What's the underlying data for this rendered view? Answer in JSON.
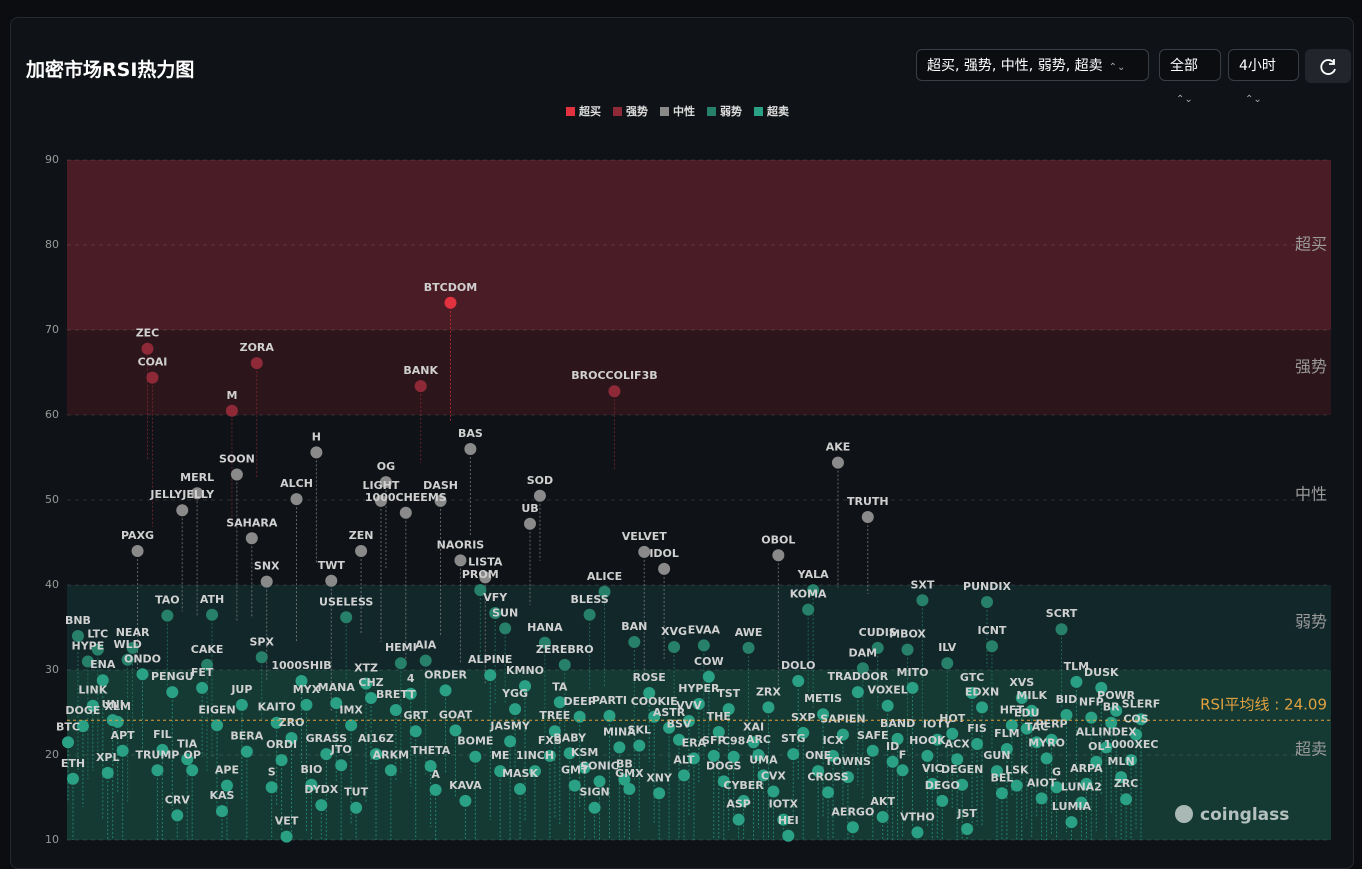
{
  "controls": {
    "zone_filter": "超买, 强势, 中性, 弱势, 超卖",
    "scope": "全部",
    "timeframe": "4小时"
  },
  "chart_data": {
    "type": "scatter",
    "title": "加密市场RSI热力图",
    "watermark": "coinglass",
    "ylim": [
      10,
      90
    ],
    "yticks": [
      10,
      20,
      30,
      40,
      50,
      60,
      70,
      80,
      90
    ],
    "grid": true,
    "legend": "top",
    "zones": [
      {
        "name": "超买",
        "color": "#e0323f",
        "band": "#4a1c25",
        "range": [
          70,
          90
        ]
      },
      {
        "name": "强势",
        "color": "#8e2a38",
        "band": "#2c161b",
        "range": [
          60,
          70
        ]
      },
      {
        "name": "中性",
        "color": "#8a8a8a",
        "band": "#0f1216",
        "range": [
          40,
          60
        ]
      },
      {
        "name": "弱势",
        "color": "#27806a",
        "band": "#11272a",
        "range": [
          30,
          40
        ]
      },
      {
        "name": "超卖",
        "color": "#2aa085",
        "band": "#143a33",
        "range": [
          10,
          30
        ]
      }
    ],
    "average": {
      "value": 24.09,
      "label": "RSI平均线 : 24.09",
      "color": "#e0a040"
    },
    "categories": [
      "BTC",
      "ETH",
      "BNB",
      "DOGE",
      "HYPE",
      "LINK",
      "LTC",
      "ENA",
      "XPL",
      "UNI",
      "XLM",
      "APT",
      "WLD",
      "NEAR",
      "PAXG",
      "ONDO",
      "ZEC",
      "COAI",
      "TRUMP",
      "FIL",
      "TAO",
      "PENGU",
      "CRV",
      "JELLYJELLY",
      "TIA",
      "OP",
      "MERL",
      "FET",
      "CAKE",
      "ATH",
      "EIGEN",
      "KAS",
      "APE",
      "M",
      "SOON",
      "JUP",
      "BERA",
      "SAHARA",
      "ZORA",
      "SPX",
      "SNX",
      "S",
      "KAITO",
      "ORDI",
      "VET",
      "ZRO",
      "ALCH",
      "1000SHIB",
      "MYX",
      "BIO",
      "H",
      "DYDX",
      "GRASS",
      "TWT",
      "MANA",
      "JTO",
      "USELESS",
      "IMX",
      "TUT",
      "ZEN",
      "XTZ",
      "CHZ",
      "AI16Z",
      "LIGHT",
      "OG",
      "ARKM",
      "BRETT",
      "HEMI",
      "1000CHEEMS",
      "4",
      "GRT",
      "BANK",
      "AIA",
      "THETA",
      "A",
      "DASH",
      "ORDER",
      "BTCDOM",
      "GOAT",
      "NAORIS",
      "KAVA",
      "BAS",
      "BOME",
      "PROM",
      "LISTA",
      "ALPINE",
      "VFY",
      "ME",
      "SUN",
      "JASMY",
      "YGG",
      "MASK",
      "KMNO",
      "UB",
      "1INCH",
      "SOD",
      "HANA",
      "FXS",
      "TREE",
      "TA",
      "ZEREBRO",
      "BABY",
      "GMT",
      "DEEP",
      "KSM",
      "BLESS",
      "SIGN",
      "SONIC",
      "ALICE",
      "PARTI",
      "BROCCOLIF3B",
      "MINA",
      "BB",
      "GMX",
      "BAN",
      "SKL",
      "VELVET",
      "ROSE",
      "COOKIE",
      "XNY",
      "IDOL",
      "ASTR",
      "XVG",
      "BSV",
      "ALT",
      "VVV",
      "ERA",
      "HYPER",
      "EVAA",
      "COW",
      "SFP",
      "THE",
      "DOGS",
      "TST",
      "C98",
      "ASP",
      "CYBER",
      "AWE",
      "XAI",
      "ARC",
      "UMA",
      "ZRX",
      "CVX",
      "OBOL",
      "IOTX",
      "HEI",
      "STG",
      "DOLO",
      "SXP",
      "KOMA",
      "YALA",
      "ONE",
      "METIS",
      "CROSS",
      "ICX",
      "AKE",
      "SAPIEN",
      "TOWNS",
      "AERGO",
      "TRADOOR",
      "DAM",
      "TRUTH",
      "SAFE",
      "CUDIS",
      "AKT",
      "VOXEL",
      "ID",
      "BAND",
      "F",
      "MBOX",
      "MITO",
      "VTHO",
      "SXT",
      "HOOK",
      "VIC",
      "IOTY",
      "DEGO",
      "ILV",
      "HOT",
      "ACX",
      "DEGEN",
      "JST",
      "GTC",
      "FIS",
      "EDXN",
      "PUNDIX",
      "ICNT",
      "GUN",
      "BEL",
      "FLM",
      "HFT",
      "LSK",
      "XVS",
      "EDU",
      "MILK",
      "TAC",
      "AIOT",
      "MYRO",
      "PERP",
      "G",
      "SCRT",
      "BID",
      "LUMIA",
      "TLM",
      "LUNA2",
      "ARPA",
      "NFP",
      "OL",
      "DUSK",
      "ALLINDEX",
      "BR",
      "POWR",
      "MLN",
      "ZRC",
      "1000XEC",
      "COS",
      "SLERF"
    ],
    "values": [
      21.5,
      17.2,
      34.0,
      23.4,
      31.0,
      25.8,
      32.4,
      28.8,
      17.9,
      24.1,
      23.9,
      20.5,
      31.2,
      32.6,
      44.0,
      29.5,
      67.8,
      64.4,
      18.2,
      20.6,
      36.4,
      27.4,
      12.9,
      48.8,
      19.5,
      18.2,
      50.8,
      27.9,
      30.6,
      36.5,
      23.5,
      13.4,
      16.4,
      60.5,
      53.0,
      25.9,
      20.4,
      45.5,
      66.1,
      31.5,
      40.4,
      16.2,
      23.8,
      19.4,
      10.4,
      22.0,
      50.1,
      28.7,
      25.9,
      16.5,
      55.6,
      14.1,
      20.1,
      40.5,
      26.1,
      18.8,
      36.2,
      23.5,
      13.8,
      44.0,
      28.4,
      26.7,
      20.1,
      49.9,
      52.1,
      18.2,
      25.3,
      30.8,
      48.5,
      27.2,
      22.8,
      63.4,
      31.1,
      18.7,
      15.9,
      49.9,
      27.6,
      73.2,
      22.9,
      42.9,
      14.6,
      56.0,
      19.8,
      39.4,
      40.9,
      29.4,
      36.7,
      18.1,
      34.9,
      21.6,
      25.4,
      16.0,
      28.1,
      47.2,
      18.1,
      50.5,
      33.2,
      19.9,
      22.8,
      26.2,
      30.6,
      20.2,
      16.4,
      24.5,
      18.5,
      36.5,
      13.8,
      16.9,
      39.2,
      24.6,
      62.8,
      20.9,
      17.1,
      16.0,
      33.3,
      21.1,
      43.9,
      27.3,
      24.5,
      15.5,
      41.9,
      23.2,
      32.7,
      21.8,
      17.6,
      24.0,
      19.6,
      26.0,
      32.9,
      29.2,
      19.9,
      22.7,
      16.9,
      25.4,
      19.8,
      12.4,
      14.6,
      32.6,
      21.5,
      20.0,
      17.6,
      25.6,
      15.7,
      43.5,
      12.4,
      10.5,
      20.1,
      28.7,
      22.6,
      37.1,
      39.4,
      18.1,
      24.8,
      15.6,
      19.9,
      54.4,
      22.4,
      17.4,
      11.5,
      27.4,
      30.2,
      48.0,
      20.5,
      32.6,
      12.7,
      25.8,
      19.2,
      21.9,
      18.2,
      32.4,
      27.9,
      10.9,
      38.2,
      19.9,
      16.6,
      21.8,
      14.6,
      30.8,
      22.5,
      19.5,
      16.5,
      11.3,
      27.3,
      21.3,
      25.6,
      38.0,
      32.8,
      18.1,
      15.5,
      20.7,
      23.5,
      16.4,
      26.7,
      23.1,
      25.2,
      21.5,
      14.9,
      19.6,
      21.8,
      16.2,
      34.8,
      24.7,
      12.1,
      28.6,
      14.4,
      16.6,
      24.4,
      19.2,
      27.9,
      20.9,
      23.8,
      25.2,
      17.4,
      14.8,
      19.4,
      22.4,
      24.2
    ]
  }
}
